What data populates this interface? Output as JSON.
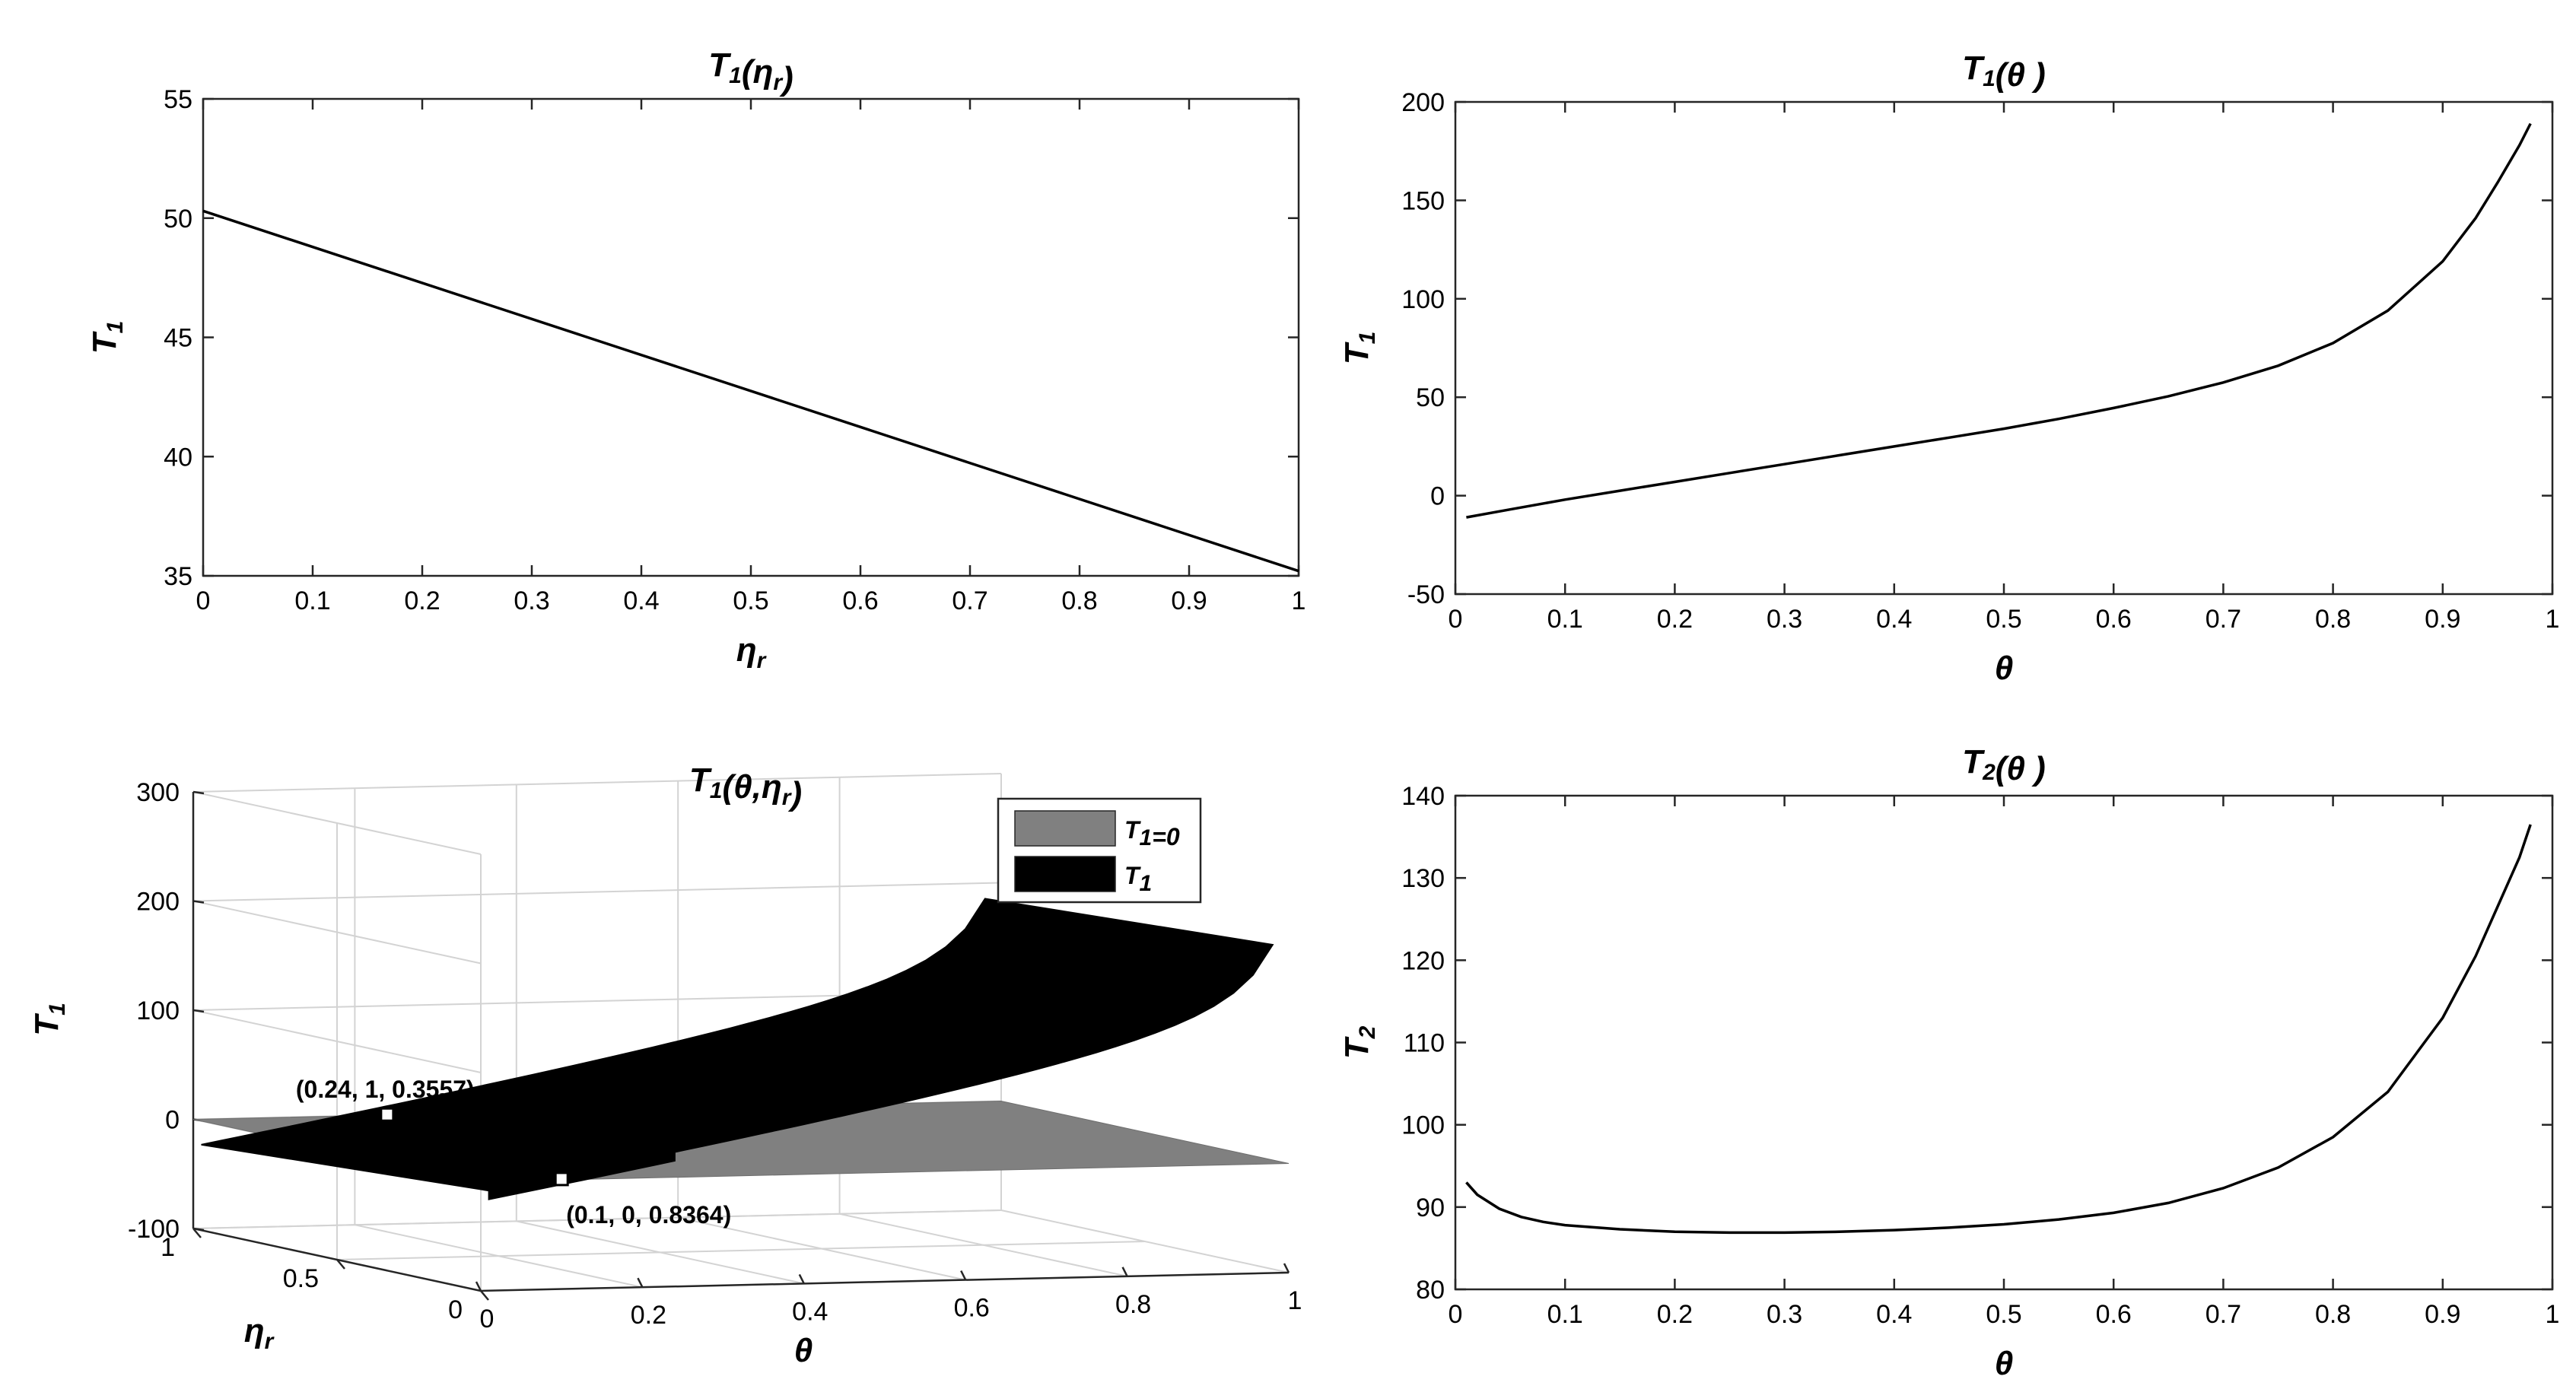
{
  "chart_data": [
    {
      "type": "line",
      "title": "T1(ηr)",
      "title_parts": {
        "base": "T",
        "sub": "1",
        "arg": "η",
        "arg_sub": "r"
      },
      "xlabel": {
        "base": "η",
        "sub": "r"
      },
      "ylabel": {
        "base": "T",
        "sub": "1"
      },
      "xlim": [
        0,
        1
      ],
      "ylim": [
        35,
        55
      ],
      "xticks": [
        "0",
        "0.1",
        "0.2",
        "0.3",
        "0.4",
        "0.5",
        "0.6",
        "0.7",
        "0.8",
        "0.9",
        "1"
      ],
      "yticks": [
        "35",
        "40",
        "45",
        "50",
        "55"
      ],
      "grid": false,
      "series": [
        {
          "x": [
            0,
            1
          ],
          "y": [
            50.3,
            35.2
          ],
          "color": "#000000"
        }
      ]
    },
    {
      "type": "line",
      "title": "T1(θ )",
      "title_parts": {
        "base": "T",
        "sub": "1",
        "arg": "θ "
      },
      "xlabel": {
        "base": "θ"
      },
      "ylabel": {
        "base": "T",
        "sub": "1"
      },
      "xlim": [
        0,
        1
      ],
      "ylim": [
        -50,
        200
      ],
      "xticks": [
        "0",
        "0.1",
        "0.2",
        "0.3",
        "0.4",
        "0.5",
        "0.6",
        "0.7",
        "0.8",
        "0.9",
        "1"
      ],
      "yticks": [
        "-50",
        "0",
        "50",
        "100",
        "150",
        "200"
      ],
      "grid": false,
      "series": [
        {
          "x": [
            0.01,
            0.05,
            0.1,
            0.15,
            0.2,
            0.25,
            0.3,
            0.35,
            0.4,
            0.45,
            0.5,
            0.55,
            0.6,
            0.65,
            0.7,
            0.75,
            0.8,
            0.85,
            0.9,
            0.93,
            0.95,
            0.97,
            0.98
          ],
          "y": [
            -11,
            -7,
            -2,
            2.5,
            7,
            11.5,
            16,
            20.5,
            25,
            29.5,
            34,
            39,
            44.5,
            50.5,
            57.5,
            66,
            77.5,
            94,
            119,
            141,
            159,
            178,
            189
          ],
          "color": "#000000"
        }
      ]
    },
    {
      "type": "surface3d",
      "title": "T1(θ,ηr)",
      "title_parts": {
        "base": "T",
        "sub": "1",
        "arg": "θ,η",
        "arg_sub": "r"
      },
      "xlabel": {
        "base": "θ"
      },
      "ylabel": {
        "base": "η",
        "sub": "r"
      },
      "zlabel": {
        "base": "T",
        "sub": "1"
      },
      "xlim": [
        0,
        1
      ],
      "ylim": [
        0,
        1
      ],
      "zlim": [
        -100,
        300
      ],
      "xticks": [
        "0",
        "0.2",
        "0.4",
        "0.6",
        "0.8",
        "1"
      ],
      "yticks": [
        "0",
        "0.5",
        "1"
      ],
      "zticks": [
        "-100",
        "0",
        "100",
        "200",
        "300"
      ],
      "grid": true,
      "legend": {
        "location": "top-right",
        "entries": [
          {
            "base": "T",
            "sub": "1",
            "suffix": "=0",
            "color": "#808080"
          },
          {
            "base": "T",
            "sub": "1",
            "suffix": "",
            "color": "#000000"
          }
        ]
      },
      "surfaces": [
        {
          "name": "T1=0",
          "color": "#808080",
          "formula": "z = 0"
        },
        {
          "name": "T1",
          "color": "#000000",
          "formula": "T1(θ, ηr) over θ ∈ [0.01, 0.98], ηr ∈ [0, 1]"
        }
      ],
      "annotations": [
        {
          "text": "(0.24, 1, 0.3557)",
          "point": [
            0.24,
            1,
            0.3557
          ]
        },
        {
          "text": "(0.1, 0, 0.8364)",
          "point": [
            0.1,
            0,
            0.8364
          ]
        }
      ]
    },
    {
      "type": "line",
      "title": "T2(θ )",
      "title_parts": {
        "base": "T",
        "sub": "2",
        "arg": "θ "
      },
      "xlabel": {
        "base": "θ"
      },
      "ylabel": {
        "base": "T",
        "sub": "2"
      },
      "xlim": [
        0,
        1
      ],
      "ylim": [
        80,
        140
      ],
      "xticks": [
        "0",
        "0.1",
        "0.2",
        "0.3",
        "0.4",
        "0.5",
        "0.6",
        "0.7",
        "0.8",
        "0.9",
        "1"
      ],
      "yticks": [
        "80",
        "90",
        "100",
        "110",
        "120",
        "130",
        "140"
      ],
      "grid": false,
      "series": [
        {
          "x": [
            0.01,
            0.02,
            0.04,
            0.06,
            0.08,
            0.1,
            0.15,
            0.2,
            0.25,
            0.3,
            0.35,
            0.4,
            0.45,
            0.5,
            0.55,
            0.6,
            0.65,
            0.7,
            0.75,
            0.8,
            0.85,
            0.9,
            0.93,
            0.95,
            0.97,
            0.98
          ],
          "y": [
            93,
            91.5,
            89.8,
            88.8,
            88.2,
            87.8,
            87.3,
            87.0,
            86.9,
            86.9,
            87.0,
            87.2,
            87.5,
            87.9,
            88.5,
            89.3,
            90.5,
            92.3,
            94.8,
            98.5,
            104,
            113,
            120.5,
            126.5,
            132.5,
            136.5
          ],
          "color": "#000000"
        }
      ]
    }
  ]
}
